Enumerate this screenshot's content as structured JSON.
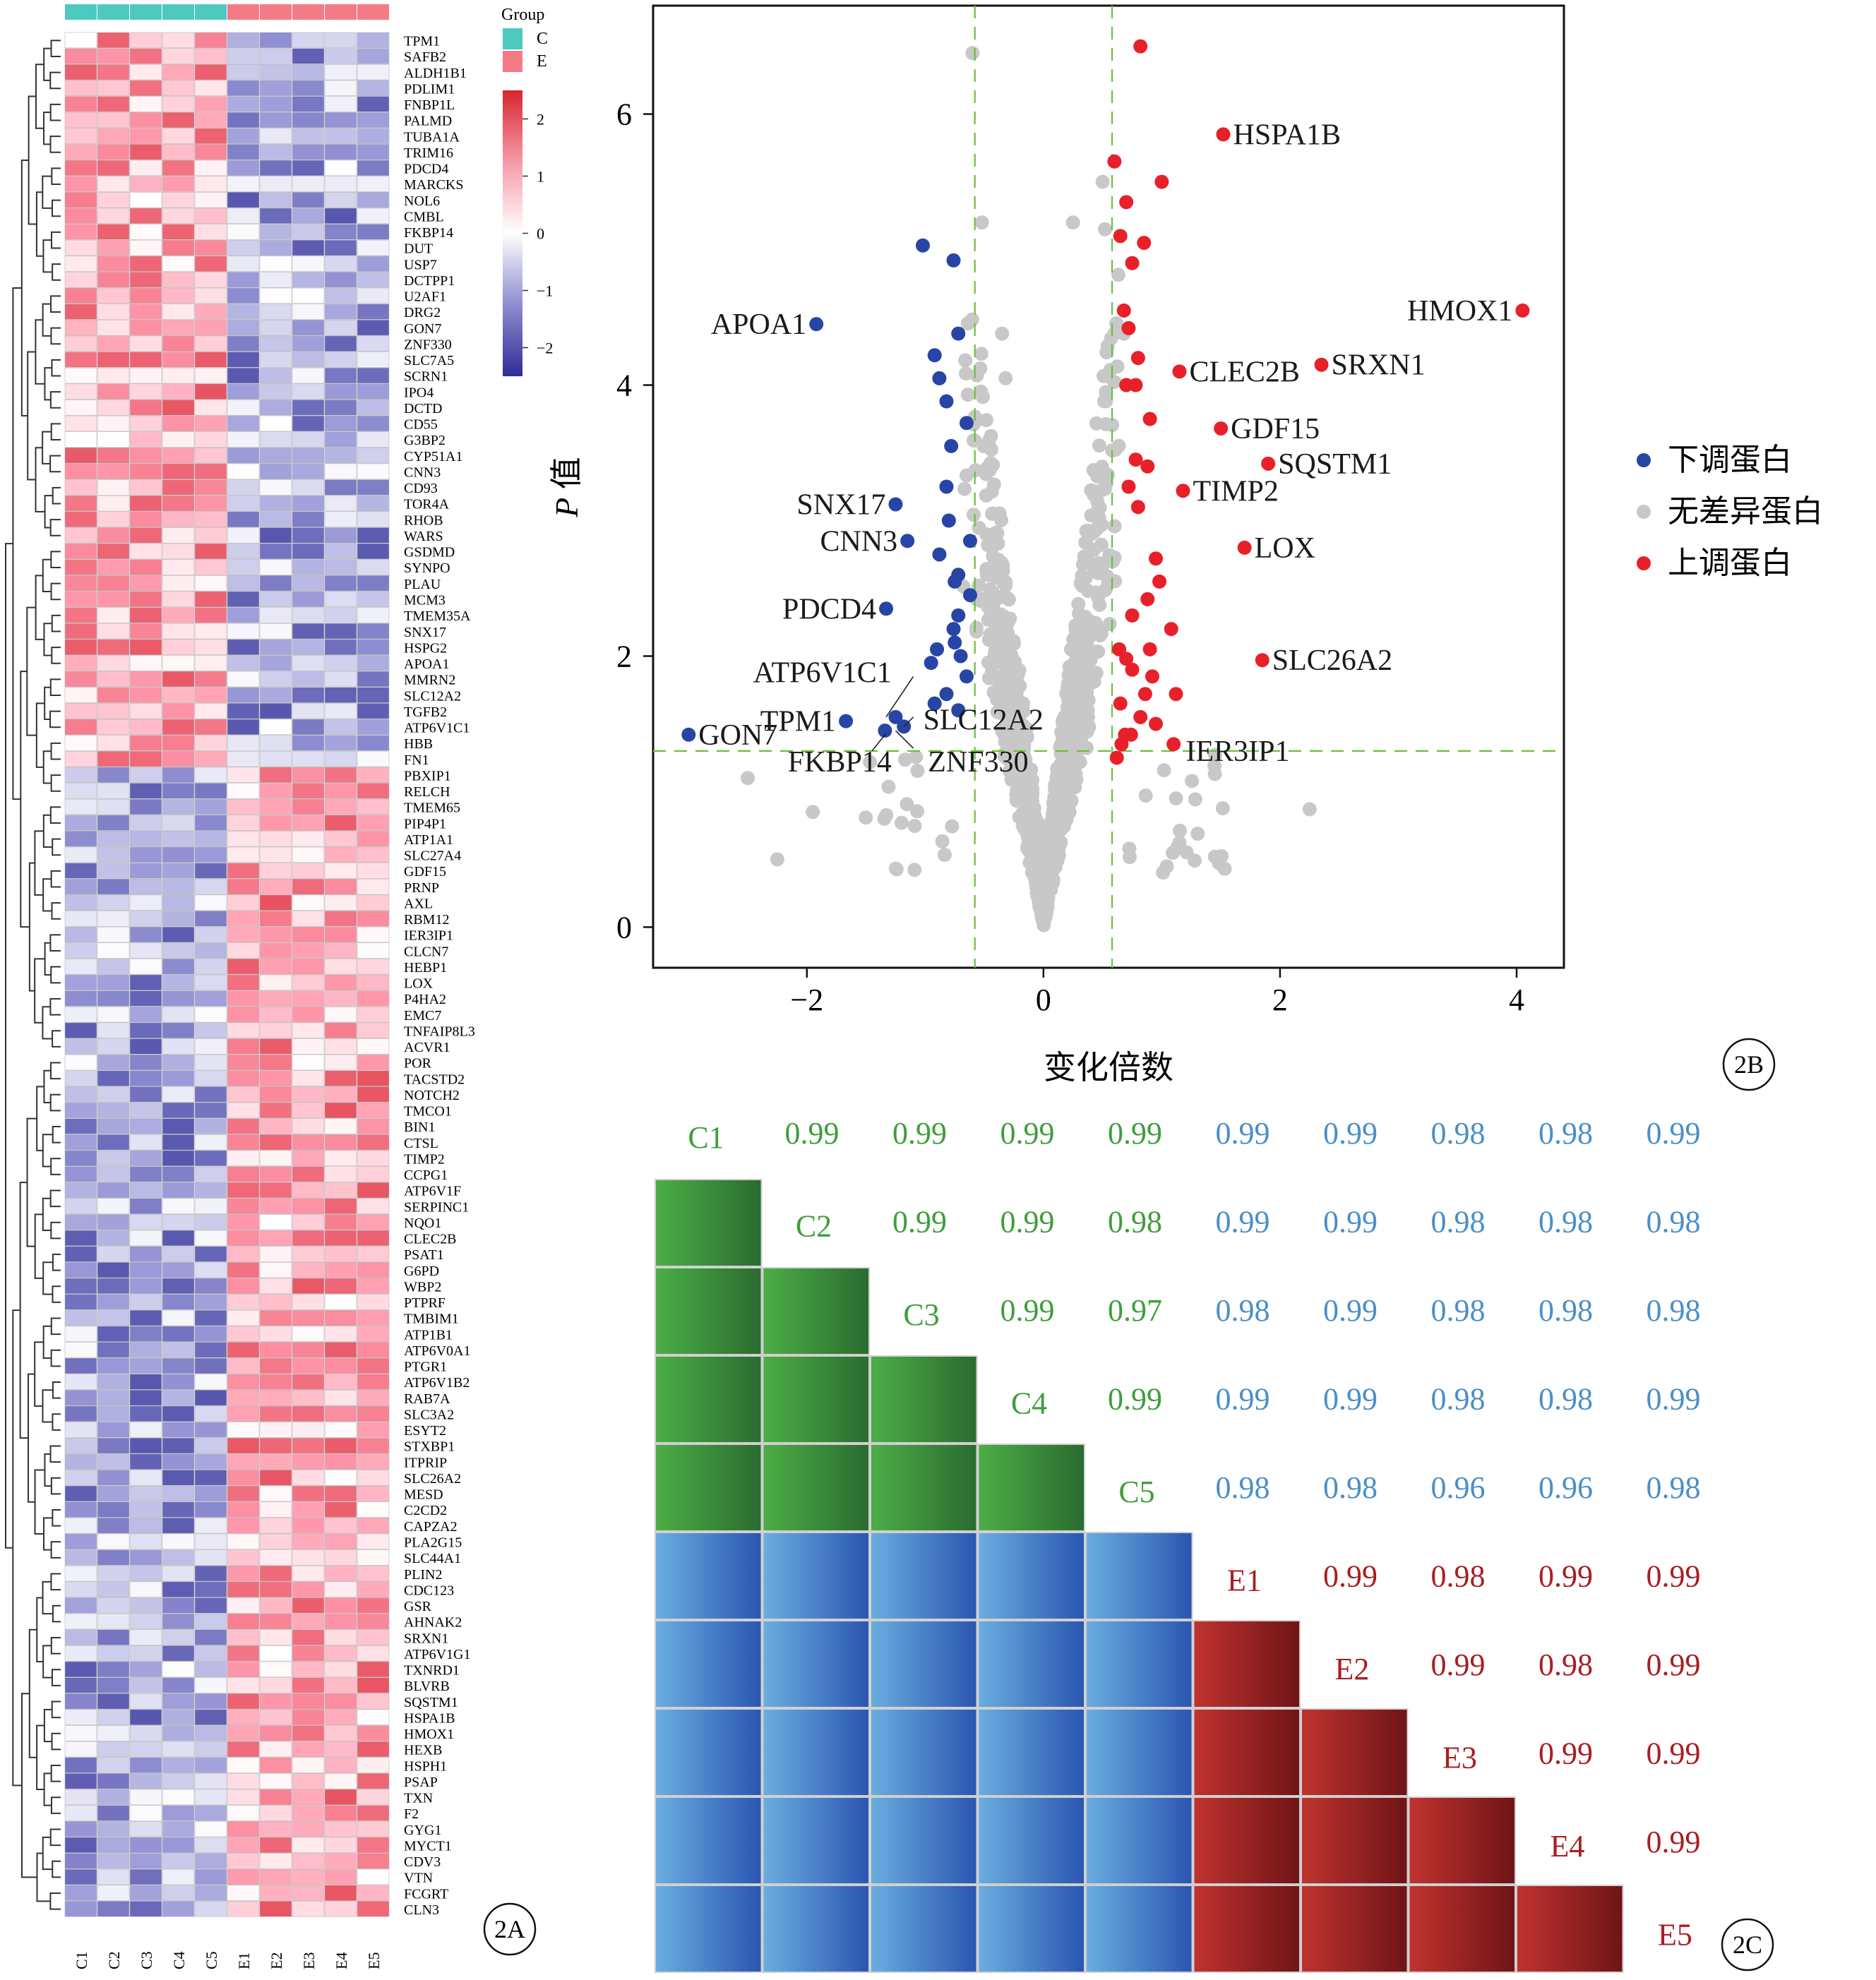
{
  "panel_labels": {
    "heatmap": "2A",
    "volcano": "2B",
    "correlation": "2C"
  },
  "chart_data": [
    {
      "id": "heatmap",
      "type": "heatmap",
      "samples": [
        "C1",
        "C2",
        "C3",
        "C4",
        "C5",
        "E1",
        "E2",
        "E3",
        "E4",
        "E5"
      ],
      "sample_groups": [
        "C",
        "C",
        "C",
        "C",
        "C",
        "E",
        "E",
        "E",
        "E",
        "E"
      ],
      "group_legend": {
        "title": "Group",
        "items": [
          {
            "label": "C",
            "color": "#4ec9c0"
          },
          {
            "label": "E",
            "color": "#f47a86"
          }
        ]
      },
      "colorbar": {
        "ticks": [
          2,
          1,
          0,
          -1,
          -2
        ],
        "tick_labels": [
          "2",
          "1",
          "0",
          "−1",
          "−2"
        ],
        "range": [
          -2.5,
          2.5
        ],
        "colors": [
          "#2e2d94",
          "#ffffff",
          "#d8252e"
        ]
      },
      "genes": [
        "TPM1",
        "SAFB2",
        "ALDH1B1",
        "PDLIM1",
        "FNBP1L",
        "PALMD",
        "TUBA1A",
        "TRIM16",
        "PDCD4",
        "MARCKS",
        "NOL6",
        "CMBL",
        "FKBP14",
        "DUT",
        "USP7",
        "DCTPP1",
        "U2AF1",
        "DRG2",
        "GON7",
        "ZNF330",
        "SLC7A5",
        "SCRN1",
        "IPO4",
        "DCTD",
        "CD55",
        "G3BP2",
        "CYP51A1",
        "CNN3",
        "CD93",
        "TOR4A",
        "RHOB",
        "WARS",
        "GSDMD",
        "SYNPO",
        "PLAU",
        "MCM3",
        "TMEM35A",
        "SNX17",
        "HSPG2",
        "APOA1",
        "MMRN2",
        "SLC12A2",
        "TGFB2",
        "ATP6V1C1",
        "HBB",
        "FN1",
        "PBXIP1",
        "RELCH",
        "TMEM65",
        "PIP4P1",
        "ATP1A1",
        "SLC27A4",
        "GDF15",
        "PRNP",
        "AXL",
        "RBM12",
        "IER3IP1",
        "CLCN7",
        "HEBP1",
        "LOX",
        "P4HA2",
        "EMC7",
        "TNFAIP8L3",
        "ACVR1",
        "POR",
        "TACSTD2",
        "NOTCH2",
        "TMCO1",
        "BIN1",
        "CTSL",
        "TIMP2",
        "CCPG1",
        "ATP6V1F",
        "SERPINC1",
        "NQO1",
        "CLEC2B",
        "PSAT1",
        "G6PD",
        "WBP2",
        "PTPRF",
        "TMBIM1",
        "ATP1B1",
        "ATP6V0A1",
        "PTGR1",
        "ATP6V1B2",
        "RAB7A",
        "SLC3A2",
        "ESYT2",
        "STXBP1",
        "ITPRIP",
        "SLC26A2",
        "MESD",
        "C2CD2",
        "CAPZA2",
        "PLA2G15",
        "SLC44A1",
        "PLIN2",
        "CDC123",
        "GSR",
        "AHNAK2",
        "SRXN1",
        "ATP6V1G1",
        "TXNRD1",
        "BLVRB",
        "SQSTM1",
        "HSPA1B",
        "HMOX1",
        "HEXB",
        "HSPH1",
        "PSAP",
        "TXN",
        "F2",
        "GYG1",
        "MYCT1",
        "CDV3",
        "VTN",
        "FCGRT",
        "CLN3"
      ],
      "down_gene_count": 46
    },
    {
      "id": "volcano",
      "type": "scatter",
      "xlabel": "变化倍数",
      "ylabel_italic": "P",
      "ylabel_rest": " 值",
      "xlim": [
        -3.3,
        4.4
      ],
      "ylim": [
        -0.3,
        6.8
      ],
      "xticks": [
        -2,
        0,
        2,
        4
      ],
      "xtick_labels": [
        "−2",
        "0",
        "2",
        "4"
      ],
      "yticks": [
        0,
        2,
        4,
        6
      ],
      "ytick_labels": [
        "0",
        "2",
        "4",
        "6"
      ],
      "thresholds": {
        "x": [
          -0.58,
          0.58
        ],
        "y": 1.3
      },
      "legend": [
        {
          "label": "下调蛋白",
          "color": "#2845a6"
        },
        {
          "label": "无差异蛋白",
          "color": "#c8c8c8"
        },
        {
          "label": "上调蛋白",
          "color": "#e8202a"
        }
      ],
      "series": [
        {
          "name": "下调蛋白",
          "color": "#2845a6",
          "points": [
            [
              -1.92,
              4.45
            ],
            [
              -3.0,
              1.42
            ],
            [
              -1.67,
              1.52
            ],
            [
              -1.25,
              3.12
            ],
            [
              -1.15,
              2.85
            ],
            [
              -1.33,
              2.35
            ],
            [
              -1.34,
              1.45
            ],
            [
              -1.25,
              1.55
            ],
            [
              -1.18,
              1.48
            ],
            [
              -1.02,
              5.03
            ],
            [
              -0.92,
              4.22
            ],
            [
              -0.88,
              4.05
            ],
            [
              -0.82,
              3.88
            ],
            [
              -0.78,
              3.55
            ],
            [
              -0.82,
              3.25
            ],
            [
              -0.8,
              3.0
            ],
            [
              -0.88,
              2.75
            ],
            [
              -0.75,
              2.55
            ],
            [
              -0.72,
              2.3
            ],
            [
              -0.65,
              3.72
            ],
            [
              -0.62,
              2.85
            ],
            [
              -0.62,
              2.45
            ],
            [
              -0.75,
              2.1
            ],
            [
              -0.9,
              2.05
            ],
            [
              -0.95,
              1.95
            ],
            [
              -0.65,
              1.85
            ],
            [
              -0.82,
              1.72
            ],
            [
              -0.92,
              1.65
            ],
            [
              -0.72,
              1.6
            ],
            [
              -0.76,
              4.92
            ],
            [
              -0.72,
              4.38
            ],
            [
              -0.72,
              2.6
            ],
            [
              -0.76,
              2.2
            ],
            [
              -0.7,
              2.0
            ]
          ]
        },
        {
          "name": "上调蛋白",
          "color": "#e8202a",
          "points": [
            [
              0.82,
              6.5
            ],
            [
              1.52,
              5.85
            ],
            [
              4.05,
              4.55
            ],
            [
              2.35,
              4.15
            ],
            [
              1.15,
              4.1
            ],
            [
              1.5,
              3.68
            ],
            [
              1.9,
              3.42
            ],
            [
              1.18,
              3.22
            ],
            [
              1.7,
              2.8
            ],
            [
              1.85,
              1.97
            ],
            [
              0.6,
              5.65
            ],
            [
              1.0,
              5.5
            ],
            [
              0.7,
              5.35
            ],
            [
              0.65,
              5.1
            ],
            [
              0.85,
              5.05
            ],
            [
              0.75,
              4.9
            ],
            [
              0.68,
              4.55
            ],
            [
              0.72,
              4.42
            ],
            [
              0.8,
              4.2
            ],
            [
              0.78,
              4.0
            ],
            [
              0.7,
              4.0
            ],
            [
              0.9,
              3.75
            ],
            [
              0.78,
              3.45
            ],
            [
              0.88,
              3.4
            ],
            [
              0.72,
              3.25
            ],
            [
              0.8,
              3.1
            ],
            [
              0.95,
              2.72
            ],
            [
              0.98,
              2.55
            ],
            [
              0.88,
              2.42
            ],
            [
              0.75,
              2.3
            ],
            [
              1.08,
              2.2
            ],
            [
              0.9,
              2.05
            ],
            [
              0.7,
              1.98
            ],
            [
              0.75,
              1.9
            ],
            [
              0.92,
              1.85
            ],
            [
              1.12,
              1.72
            ],
            [
              0.65,
              1.65
            ],
            [
              0.82,
              1.55
            ],
            [
              0.95,
              1.5
            ],
            [
              0.74,
              1.42
            ],
            [
              0.66,
              1.35
            ],
            [
              1.1,
              1.35
            ],
            [
              0.62,
              1.25
            ],
            [
              0.69,
              1.42
            ],
            [
              0.86,
              1.72
            ],
            [
              0.64,
              2.05
            ]
          ]
        }
      ],
      "annotations": [
        {
          "label": "HSPA1B",
          "x": 1.52,
          "y": 5.85,
          "anchor": "start"
        },
        {
          "label": "HMOX1",
          "x": 4.05,
          "y": 4.55,
          "anchor": "end"
        },
        {
          "label": "CLEC2B",
          "x": 1.15,
          "y": 4.1,
          "anchor": "start"
        },
        {
          "label": "SRXN1",
          "x": 2.35,
          "y": 4.15,
          "anchor": "start"
        },
        {
          "label": "GDF15",
          "x": 1.5,
          "y": 3.68,
          "anchor": "start"
        },
        {
          "label": "SQSTM1",
          "x": 1.9,
          "y": 3.42,
          "anchor": "start"
        },
        {
          "label": "TIMP2",
          "x": 1.18,
          "y": 3.22,
          "anchor": "start"
        },
        {
          "label": "LOX",
          "x": 1.7,
          "y": 2.8,
          "anchor": "start"
        },
        {
          "label": "SLC26A2",
          "x": 1.85,
          "y": 1.97,
          "anchor": "start"
        },
        {
          "label": "IER3IP1",
          "x": 1.12,
          "y": 1.3,
          "anchor": "start"
        },
        {
          "label": "APOA1",
          "x": -1.92,
          "y": 4.45,
          "anchor": "end"
        },
        {
          "label": "SNX17",
          "x": -1.25,
          "y": 3.12,
          "anchor": "end"
        },
        {
          "label": "CNN3",
          "x": -1.15,
          "y": 2.85,
          "anchor": "end"
        },
        {
          "label": "PDCD4",
          "x": -1.33,
          "y": 2.35,
          "anchor": "end"
        },
        {
          "label": "ATP6V1C1",
          "x": -1.2,
          "y": 1.88,
          "anchor": "end"
        },
        {
          "label": "GON7",
          "x": -3.0,
          "y": 1.42,
          "anchor": "start"
        },
        {
          "label": "TPM1",
          "x": -1.67,
          "y": 1.52,
          "anchor": "end"
        },
        {
          "label": "SLC12A2",
          "x": -1.1,
          "y": 1.53,
          "anchor": "start"
        },
        {
          "label": "FKBP14",
          "x": -1.2,
          "y": 1.22,
          "anchor": "end"
        },
        {
          "label": "ZNF330",
          "x": -1.06,
          "y": 1.22,
          "anchor": "start"
        }
      ]
    },
    {
      "id": "correlation",
      "type": "table",
      "labels": [
        "C1",
        "C2",
        "C3",
        "C4",
        "C5",
        "E1",
        "E2",
        "E3",
        "E4",
        "E5"
      ],
      "values": [
        [
          null,
          0.99,
          0.99,
          0.99,
          0.99,
          0.99,
          0.99,
          0.98,
          0.98,
          0.99
        ],
        [
          null,
          null,
          0.99,
          0.99,
          0.98,
          0.99,
          0.99,
          0.98,
          0.98,
          0.98
        ],
        [
          null,
          null,
          null,
          0.99,
          0.97,
          0.98,
          0.99,
          0.98,
          0.98,
          0.98
        ],
        [
          null,
          null,
          null,
          null,
          0.99,
          0.99,
          0.99,
          0.98,
          0.98,
          0.99
        ],
        [
          null,
          null,
          null,
          null,
          null,
          0.98,
          0.98,
          0.96,
          0.96,
          0.98
        ],
        [
          null,
          null,
          null,
          null,
          null,
          null,
          0.99,
          0.98,
          0.99,
          0.99
        ],
        [
          null,
          null,
          null,
          null,
          null,
          null,
          null,
          0.99,
          0.98,
          0.99
        ],
        [
          null,
          null,
          null,
          null,
          null,
          null,
          null,
          null,
          0.99,
          0.99
        ],
        [
          null,
          null,
          null,
          null,
          null,
          null,
          null,
          null,
          null,
          0.99
        ],
        [
          null,
          null,
          null,
          null,
          null,
          null,
          null,
          null,
          null,
          null
        ]
      ],
      "colors": {
        "within_C": "#3f9e3a",
        "between": "#3b74c4",
        "within_E": "#a81e22",
        "text_C": "#3f9e3a",
        "text_between": "#4a8fc8",
        "text_E": "#a81e22"
      }
    }
  ]
}
